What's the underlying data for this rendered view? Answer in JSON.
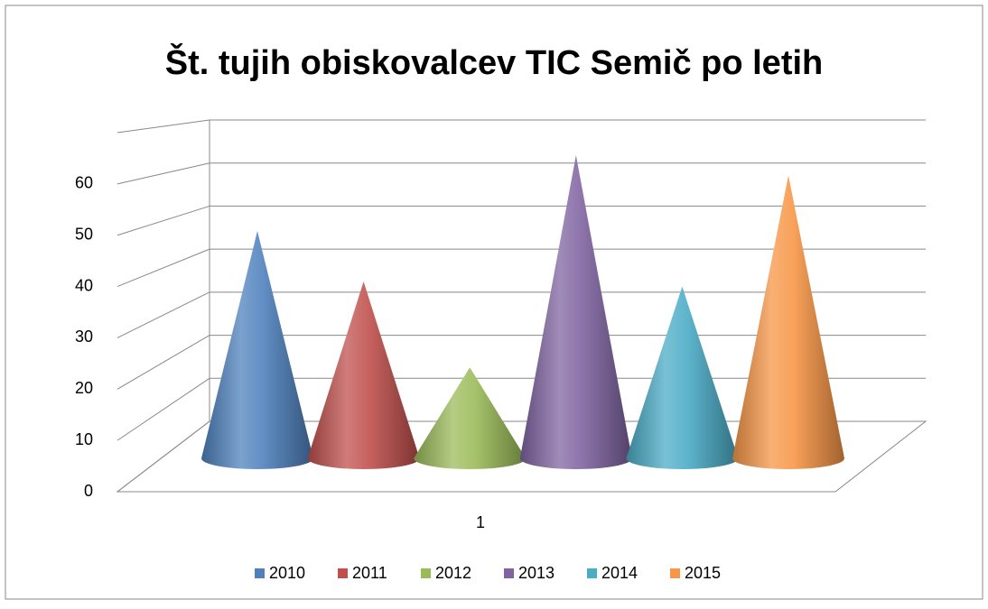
{
  "chart_data": {
    "type": "cone",
    "title": "Št. tujih obiskovalcev TIC Semič  po letih",
    "categories": [
      "1"
    ],
    "series": [
      {
        "name": "2010",
        "color": "#4f81bd",
        "values": [
          45
        ]
      },
      {
        "name": "2011",
        "color": "#c0504d",
        "values": [
          35
        ]
      },
      {
        "name": "2012",
        "color": "#9bbb59",
        "values": [
          18
        ]
      },
      {
        "name": "2013",
        "color": "#8064a2",
        "values": [
          60
        ]
      },
      {
        "name": "2014",
        "color": "#4bacc6",
        "values": [
          34
        ]
      },
      {
        "name": "2015",
        "color": "#f79646",
        "values": [
          56
        ]
      }
    ],
    "ylim": [
      0,
      70
    ],
    "yticks": [
      0,
      10,
      20,
      30,
      40,
      50,
      60
    ],
    "grid": true,
    "legend": "bottom"
  }
}
